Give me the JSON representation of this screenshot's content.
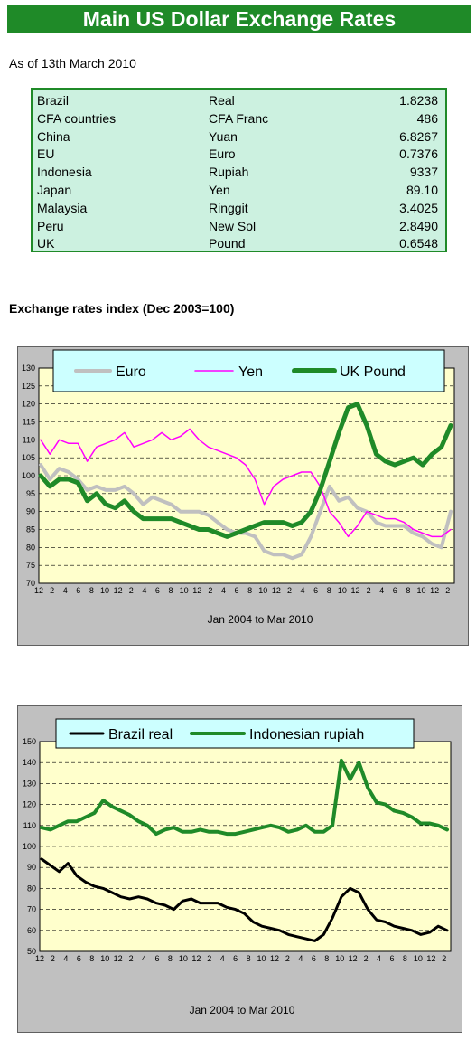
{
  "title": "Main US Dollar Exchange Rates",
  "as_of": "As of 13th March 2010",
  "rates": [
    {
      "country": "Brazil",
      "currency": "Real",
      "rate": "1.8238"
    },
    {
      "country": "CFA countries",
      "currency": "CFA Franc",
      "rate": "486"
    },
    {
      "country": "China",
      "currency": "Yuan",
      "rate": "6.8267"
    },
    {
      "country": "EU",
      "currency": "Euro",
      "rate": "0.7376"
    },
    {
      "country": "Indonesia",
      "currency": "Rupiah",
      "rate": "9337"
    },
    {
      "country": "Japan",
      "currency": "Yen",
      "rate": "89.10"
    },
    {
      "country": "Malaysia",
      "currency": "Ringgit",
      "rate": "3.4025"
    },
    {
      "country": "Peru",
      "currency": "New Sol",
      "rate": "2.8490"
    },
    {
      "country": "UK",
      "currency": "Pound",
      "rate": "0.6548"
    }
  ],
  "section_title": "Exchange rates index (Dec 2003=100)",
  "chart_data": [
    {
      "type": "line",
      "xlabel": "Jan 2004  to Mar 2010",
      "ylim": [
        70,
        130
      ],
      "yticks": [
        70,
        75,
        80,
        85,
        90,
        95,
        100,
        105,
        110,
        115,
        120,
        125,
        130
      ],
      "x_tick_labels": [
        "12",
        "2",
        "4",
        "6",
        "8",
        "10",
        "12",
        "2",
        "4",
        "6",
        "8",
        "10",
        "12",
        "2",
        "4",
        "6",
        "8",
        "10",
        "12",
        "2",
        "4",
        "6",
        "8",
        "10",
        "12",
        "2",
        "4",
        "6",
        "8",
        "10",
        "12",
        "2"
      ],
      "grid": "horizontal dashed",
      "legend_position": "top",
      "colors": {
        "plot_bg": "#ffffcc",
        "frame_bg": "#c0c0c0",
        "legend_bg": "#ccffff",
        "grid": "#000000"
      },
      "series": [
        {
          "name": "Euro",
          "color": "#c0c0c0",
          "values": [
            103,
            99,
            102,
            101,
            99,
            96,
            97,
            96,
            96,
            97,
            95,
            92,
            94,
            93,
            92,
            90,
            90,
            90,
            89,
            87,
            85,
            84,
            84,
            83,
            79,
            78,
            78,
            77,
            78,
            83,
            90,
            97,
            93,
            94,
            91,
            90,
            87,
            86,
            86,
            86,
            84,
            83,
            81,
            80,
            90
          ]
        },
        {
          "name": "Yen",
          "color": "#ff00ff",
          "values": [
            110,
            106,
            110,
            109,
            109,
            104,
            108,
            109,
            110,
            112,
            108,
            109,
            110,
            112,
            110,
            111,
            113,
            110,
            108,
            107,
            106,
            105,
            103,
            99,
            92,
            97,
            99,
            100,
            101,
            101,
            97,
            90,
            87,
            83,
            86,
            90,
            89,
            88,
            88,
            87,
            85,
            84,
            83,
            83,
            85
          ]
        },
        {
          "name": "UK Pound",
          "color": "#1f8a28",
          "values": [
            100,
            97,
            99,
            99,
            98,
            93,
            95,
            92,
            91,
            93,
            90,
            88,
            88,
            88,
            88,
            87,
            86,
            85,
            85,
            84,
            83,
            84,
            85,
            86,
            87,
            87,
            87,
            86,
            87,
            90,
            96,
            104,
            112,
            119,
            120,
            114,
            106,
            104,
            103,
            104,
            105,
            103,
            106,
            108,
            114
          ]
        }
      ]
    },
    {
      "type": "line",
      "xlabel": "Jan 2004  to Mar  2010",
      "ylim": [
        50,
        150
      ],
      "yticks": [
        50,
        60,
        70,
        80,
        90,
        100,
        110,
        120,
        130,
        140,
        150
      ],
      "x_tick_labels": [
        "12",
        "2",
        "4",
        "6",
        "8",
        "10",
        "12",
        "2",
        "4",
        "6",
        "8",
        "10",
        "12",
        "2",
        "4",
        "6",
        "8",
        "10",
        "12",
        "2",
        "4",
        "6",
        "8",
        "10",
        "12",
        "2",
        "4",
        "6",
        "8",
        "10",
        "12",
        "2"
      ],
      "grid": "horizontal dashed",
      "legend_position": "top",
      "colors": {
        "plot_bg": "#ffffcc",
        "frame_bg": "#c0c0c0",
        "legend_bg": "#ccffff",
        "grid": "#000000"
      },
      "series": [
        {
          "name": "Brazil real",
          "color": "#000000",
          "values": [
            94,
            91,
            88,
            92,
            86,
            83,
            81,
            80,
            78,
            76,
            75,
            76,
            75,
            73,
            72,
            70,
            74,
            75,
            73,
            73,
            73,
            71,
            70,
            68,
            64,
            62,
            61,
            60,
            58,
            57,
            56,
            55,
            58,
            66,
            76,
            80,
            78,
            70,
            65,
            64,
            62,
            61,
            60,
            58,
            59,
            62,
            60
          ]
        },
        {
          "name": "Indonesian rupiah",
          "color": "#1f8a28",
          "values": [
            109,
            108,
            110,
            112,
            112,
            114,
            116,
            122,
            119,
            117,
            115,
            112,
            110,
            106,
            108,
            109,
            107,
            107,
            108,
            107,
            107,
            106,
            106,
            107,
            108,
            109,
            110,
            109,
            107,
            108,
            110,
            107,
            107,
            110,
            141,
            132,
            140,
            128,
            121,
            120,
            117,
            116,
            114,
            111,
            111,
            110,
            108
          ]
        }
      ]
    }
  ]
}
